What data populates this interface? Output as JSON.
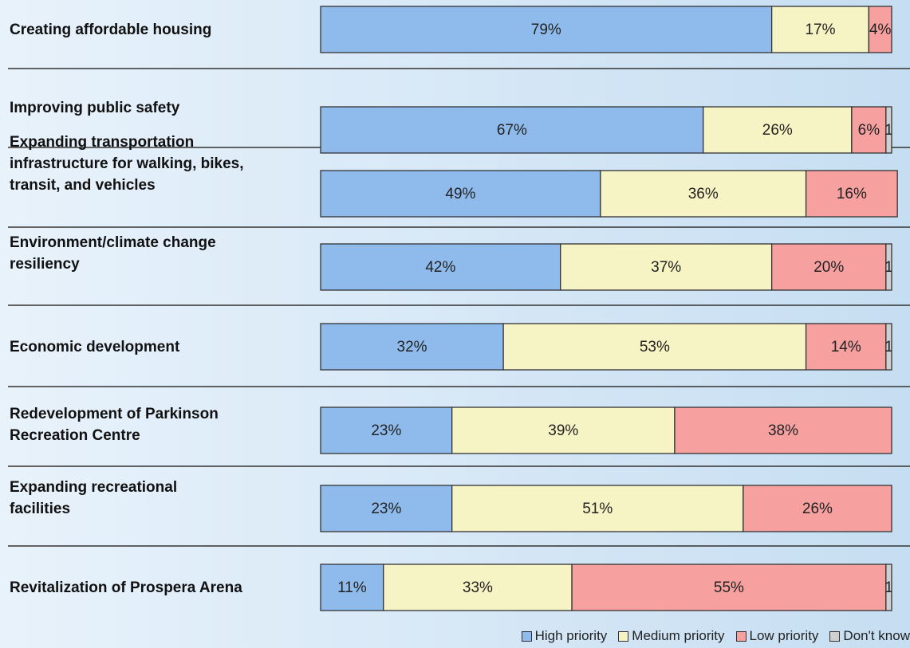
{
  "chart_data": {
    "type": "stacked-bar-horizontal",
    "categories": [
      "Creating affordable housing",
      "Improving public safety",
      "Expanding transportation infrastructure for walking, bikes, transit, and vehicles",
      "Environment/climate change resiliency",
      "Economic development",
      "Redevelopment of Parkinson Recreation Centre",
      "Expanding recreational facilities",
      "Revitalization of Prospera Arena"
    ],
    "xlim": [
      0,
      100
    ],
    "series": [
      {
        "name": "High priority",
        "color": "#8fbbec",
        "values": [
          79,
          67,
          49,
          42,
          32,
          23,
          23,
          11
        ],
        "value_labels": [
          "79%",
          "67%",
          "49%",
          "42%",
          "32%",
          "23%",
          "23%",
          "11%"
        ]
      },
      {
        "name": "Medium priority",
        "color": "#f6f4c4",
        "values": [
          17,
          26,
          36,
          37,
          53,
          39,
          51,
          33
        ],
        "value_labels": [
          "17%",
          "26%",
          "36%",
          "37%",
          "53%",
          "39%",
          "51%",
          "33%"
        ]
      },
      {
        "name": "Low priority",
        "color": "#f6a0a0",
        "values": [
          4,
          6,
          16,
          20,
          14,
          38,
          26,
          55
        ],
        "value_labels": [
          "4%",
          "6%",
          "16%",
          "20%",
          "14%",
          "38%",
          "26%",
          "55%"
        ]
      },
      {
        "name": "Don't know",
        "color": "#cfcfcf",
        "values": [
          0,
          1,
          0,
          1,
          1,
          0,
          0,
          1
        ],
        "value_labels": [
          null,
          "1",
          null,
          "1",
          "1",
          null,
          null,
          "1"
        ]
      }
    ]
  }
}
